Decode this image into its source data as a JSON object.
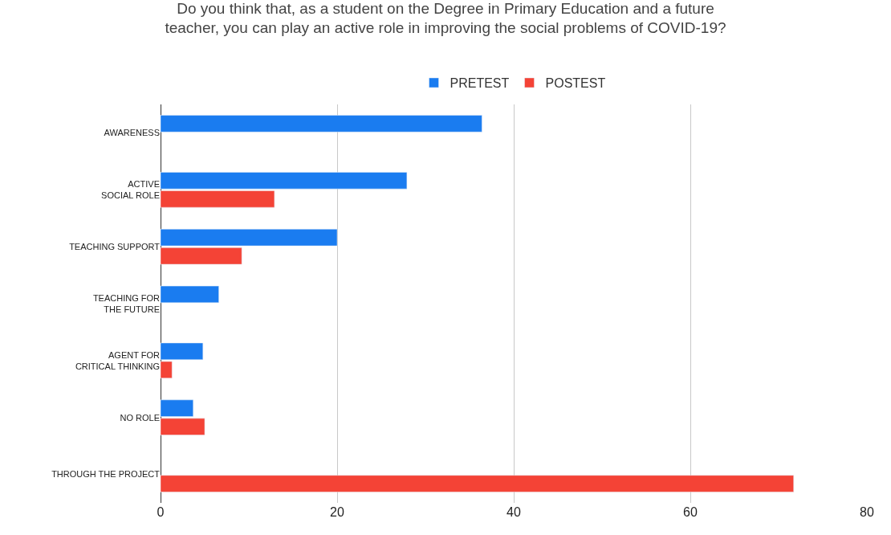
{
  "chart_data": {
    "type": "bar",
    "orientation": "horizontal",
    "title": "Do you think that, as a student on the Degree in Primary Education and a future\nteacher, you can play an active role in improving the social problems of COVID-19?",
    "categories": [
      "AWARENESS",
      "ACTIVE\nSOCIAL ROLE",
      "TEACHING SUPPORT",
      "TEACHING FOR\nTHE FUTURE",
      "AGENT FOR\nCRITICAL THINKING",
      "NO ROLE",
      "THROUGH THE PROJECT"
    ],
    "series": [
      {
        "name": "PRETEST",
        "color": "#1a7cf0",
        "values": [
          36.4,
          27.9,
          20.0,
          6.6,
          4.8,
          3.7,
          null
        ]
      },
      {
        "name": "POSTEST",
        "color": "#f44336",
        "values": [
          null,
          12.9,
          9.2,
          null,
          1.3,
          5.0,
          71.7
        ]
      }
    ],
    "xlim": [
      0,
      80
    ],
    "xticks": [
      0,
      20,
      40,
      60,
      80
    ],
    "grid": "x",
    "legend": "top"
  }
}
